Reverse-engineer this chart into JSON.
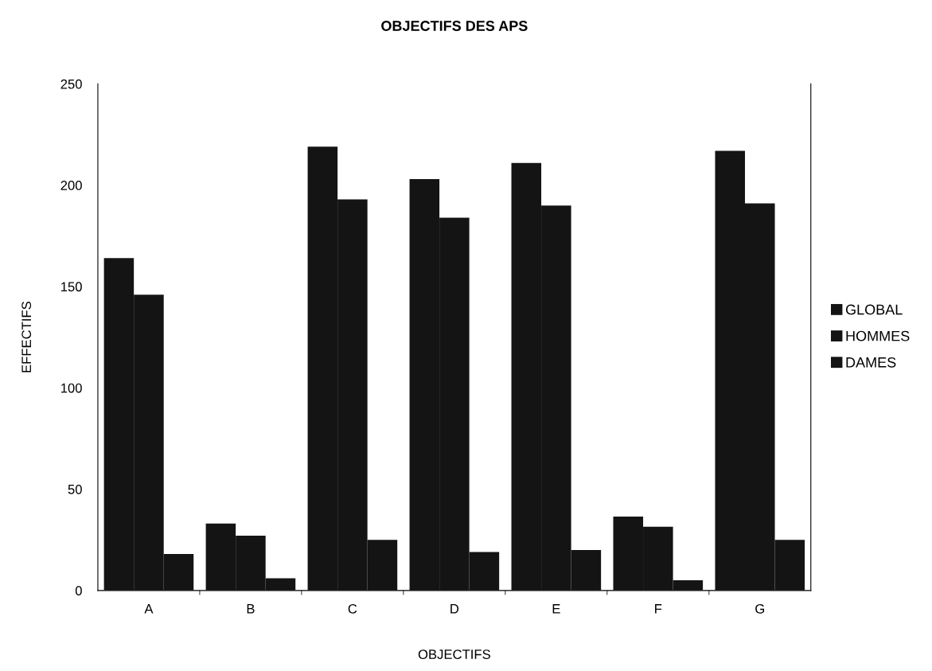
{
  "chart_data": {
    "type": "bar",
    "title": "OBJECTIFS DES APS",
    "xlabel": "OBJECTIFS",
    "ylabel": "EFFECTIFS",
    "categories": [
      "A",
      "B",
      "C",
      "D",
      "E",
      "F",
      "G"
    ],
    "series": [
      {
        "name": "GLOBAL",
        "color": "#141414",
        "values": [
          164,
          33,
          219,
          203,
          211,
          36.5,
          217
        ]
      },
      {
        "name": "HOMMES",
        "color": "#141414",
        "values": [
          146,
          27,
          193,
          184,
          190,
          31.5,
          191
        ]
      },
      {
        "name": "DAMES",
        "color": "#141414",
        "values": [
          18,
          6,
          25,
          19,
          20,
          5,
          25
        ]
      }
    ],
    "ylim": [
      0,
      250
    ],
    "yticks": [
      0,
      50,
      100,
      150,
      200,
      250
    ],
    "grid": false,
    "legend": "right"
  }
}
